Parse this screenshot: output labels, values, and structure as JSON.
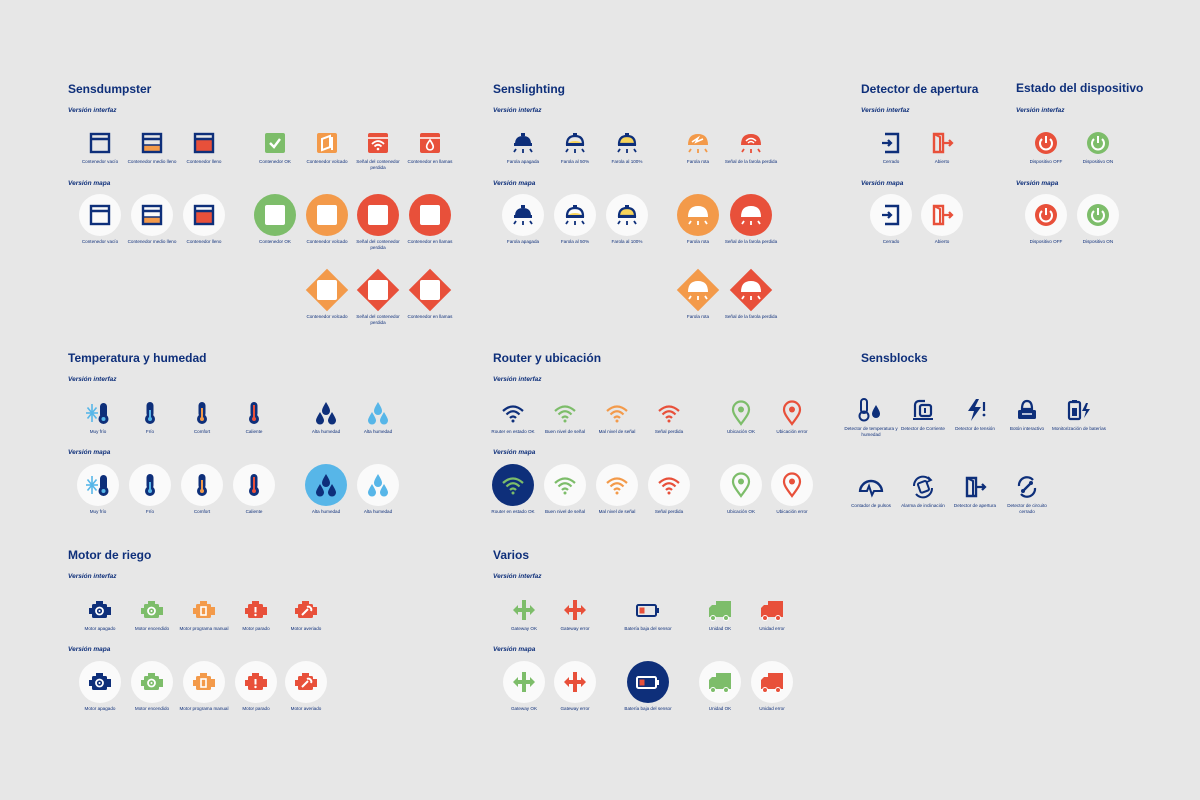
{
  "colors": {
    "navy": "#0e2f7a",
    "green": "#7dbd6a",
    "orange": "#f39a4a",
    "red": "#e8503a",
    "lightblue": "#57b6e8",
    "bg": "#e7e7e7",
    "circle": "#fafafa"
  },
  "sections": [
    {
      "id": "sensdumpster",
      "title": "Sensdumpster",
      "sub_interfaz": "Versión interfaz",
      "sub_mapa": "Versión mapa",
      "interfaz": [
        {
          "icon": "bin-empty-icon",
          "color": "navy",
          "label": "Contenedor vacío"
        },
        {
          "icon": "bin-half-icon",
          "color": "navy",
          "label": "Contenedor medio lleno"
        },
        {
          "icon": "bin-full-icon",
          "color": "navy",
          "label": "Contenedor lleno"
        },
        {
          "icon": "check-box-icon",
          "color": "green",
          "label": "Contenedor OK"
        },
        {
          "icon": "bin-tilted-icon",
          "color": "orange",
          "label": "Contenedor volcado"
        },
        {
          "icon": "wifi-box-icon",
          "color": "red",
          "label": "Señal del contenedor perdida"
        },
        {
          "icon": "fire-box-icon",
          "color": "red",
          "label": "Contenedor en llamas"
        }
      ],
      "mapa": [
        {
          "icon": "bin-empty-icon",
          "color": "navy",
          "label": "Contenedor vacío"
        },
        {
          "icon": "bin-half-icon",
          "color": "navy",
          "label": "Contenedor medio lleno"
        },
        {
          "icon": "bin-full-icon",
          "color": "navy",
          "label": "Contenedor lleno"
        },
        {
          "icon": "check-box-icon",
          "color": "green",
          "label": "Contenedor OK"
        },
        {
          "icon": "bin-tilted-icon",
          "color": "orange",
          "label": "Contenedor volcado"
        },
        {
          "icon": "wifi-box-icon",
          "color": "red",
          "label": "Señal del contenedor perdida"
        },
        {
          "icon": "fire-box-icon",
          "color": "red",
          "label": "Contenedor en llamas"
        }
      ],
      "diamond": [
        {
          "icon": "bin-tilted-icon",
          "color": "orange",
          "label": "Contenedor volcado"
        },
        {
          "icon": "wifi-box-icon",
          "color": "red",
          "label": "Señal del contenedor perdida"
        },
        {
          "icon": "fire-box-icon",
          "color": "red",
          "label": "Contenedor en llamas"
        }
      ]
    },
    {
      "id": "senslighting",
      "title": "Senslighting",
      "sub_interfaz": "Versión interfaz",
      "sub_mapa": "Versión mapa",
      "interfaz": [
        {
          "icon": "lamp-off-icon",
          "color": "navy",
          "label": "Farola apagada"
        },
        {
          "icon": "lamp-50-icon",
          "color": "navy",
          "label": "Farola al 50%"
        },
        {
          "icon": "lamp-100-icon",
          "color": "navy",
          "label": "Farola al 100%"
        },
        {
          "icon": "lamp-broken-icon",
          "color": "orange",
          "label": "Farola rota"
        },
        {
          "icon": "lamp-signal-icon",
          "color": "red",
          "label": "Señal de la farola perdida"
        }
      ],
      "mapa": [
        {
          "icon": "lamp-off-icon",
          "color": "navy",
          "label": "Farola apagada"
        },
        {
          "icon": "lamp-50-icon",
          "color": "navy",
          "label": "Farola al 50%"
        },
        {
          "icon": "lamp-100-icon",
          "color": "navy",
          "label": "Farola al 100%"
        },
        {
          "icon": "lamp-broken-icon",
          "color": "orange",
          "label": "Farola rota"
        },
        {
          "icon": "lamp-signal-icon",
          "color": "red",
          "label": "Señal de la farola perdida"
        }
      ],
      "diamond": [
        {
          "icon": "lamp-broken-icon",
          "color": "orange",
          "label": "Farola rota"
        },
        {
          "icon": "lamp-signal-icon",
          "color": "red",
          "label": "Señal de la farola perdida"
        }
      ]
    },
    {
      "id": "apertura",
      "title": "Detector de apertura",
      "sub_interfaz": "Versión interfaz",
      "sub_mapa": "Versión mapa",
      "interfaz": [
        {
          "icon": "door-closed-icon",
          "color": "navy",
          "label": "Cerrado"
        },
        {
          "icon": "door-open-icon",
          "color": "red",
          "label": "Abierto"
        }
      ],
      "mapa": [
        {
          "icon": "door-closed-icon",
          "color": "navy",
          "label": "Cerrado"
        },
        {
          "icon": "door-open-icon",
          "color": "red",
          "label": "Abierto"
        }
      ]
    },
    {
      "id": "estado",
      "title": "Estado del dispositivo",
      "sub_interfaz": "Versión interfaz",
      "sub_mapa": "Versión mapa",
      "interfaz": [
        {
          "icon": "power-off-icon",
          "color": "red",
          "label": "Dispositivo OFF"
        },
        {
          "icon": "power-on-icon",
          "color": "green",
          "label": "Dispositivo ON"
        }
      ],
      "mapa": [
        {
          "icon": "power-off-icon",
          "color": "red",
          "label": "Dispositivo OFF"
        },
        {
          "icon": "power-on-icon",
          "color": "green",
          "label": "Dispositivo ON"
        }
      ]
    },
    {
      "id": "temperatura",
      "title": "Temperatura y humedad",
      "sub_interfaz": "Versión interfaz",
      "sub_mapa": "Versión mapa",
      "interfaz": [
        {
          "icon": "snow-thermometer-icon",
          "color": "navy",
          "label": "Muy frío"
        },
        {
          "icon": "thermometer-cold-icon",
          "color": "navy",
          "label": "Frío"
        },
        {
          "icon": "thermometer-comfort-icon",
          "color": "navy",
          "label": "Comfort"
        },
        {
          "icon": "thermometer-hot-icon",
          "color": "navy",
          "label": "Caliente"
        },
        {
          "icon": "drops-high-icon",
          "color": "navy",
          "label": "Alta humedad"
        },
        {
          "icon": "drops-low-icon",
          "color": "lightblue",
          "label": "Alta humedad"
        }
      ],
      "mapa": [
        {
          "icon": "snow-thermometer-icon",
          "color": "navy",
          "label": "Muy frío"
        },
        {
          "icon": "thermometer-cold-icon",
          "color": "navy",
          "label": "Frío"
        },
        {
          "icon": "thermometer-comfort-icon",
          "color": "navy",
          "label": "Comfort"
        },
        {
          "icon": "thermometer-hot-icon",
          "color": "navy",
          "label": "Caliente"
        },
        {
          "icon": "drops-high-icon",
          "color": "navy",
          "label": "Alta humedad"
        },
        {
          "icon": "drops-low-icon",
          "color": "lightblue",
          "label": "Alta humedad"
        }
      ]
    },
    {
      "id": "router",
      "title": "Router y ubicación",
      "sub_interfaz": "Versión interfaz",
      "sub_mapa": "Versión mapa",
      "interfaz": [
        {
          "icon": "wifi-ok-icon",
          "color": "navy",
          "label": "Router en estado OK"
        },
        {
          "icon": "wifi-good-icon",
          "color": "green",
          "label": "Buen nivel de señal"
        },
        {
          "icon": "wifi-bad-icon",
          "color": "orange",
          "label": "Mal nivel de señal"
        },
        {
          "icon": "wifi-lost-icon",
          "color": "red",
          "label": "Señal perdida"
        },
        {
          "icon": "pin-ok-icon",
          "color": "green",
          "label": "Ubicación OK"
        },
        {
          "icon": "pin-error-icon",
          "color": "red",
          "label": "Ubicación error"
        }
      ],
      "mapa": [
        {
          "icon": "wifi-ok-icon",
          "color": "navy",
          "label": "Router en estado OK"
        },
        {
          "icon": "wifi-good-icon",
          "color": "green",
          "label": "Buen nivel de señal"
        },
        {
          "icon": "wifi-bad-icon",
          "color": "orange",
          "label": "Mal nivel de señal"
        },
        {
          "icon": "wifi-lost-icon",
          "color": "red",
          "label": "Señal perdida"
        },
        {
          "icon": "pin-ok-icon",
          "color": "green",
          "label": "Ubicación OK"
        },
        {
          "icon": "pin-error-icon",
          "color": "red",
          "label": "Ubicación error"
        }
      ]
    },
    {
      "id": "sensblocks",
      "title": "Sensblocks",
      "row1": [
        {
          "icon": "temp-humidity-sensor-icon",
          "color": "navy",
          "label": "Detector de temperatura y humedad"
        },
        {
          "icon": "current-sensor-icon",
          "color": "navy",
          "label": "Detector de Corriente"
        },
        {
          "icon": "voltage-sensor-icon",
          "color": "navy",
          "label": "Detector de tensión"
        },
        {
          "icon": "interactive-button-icon",
          "color": "navy",
          "label": "Botón interactivo"
        },
        {
          "icon": "battery-monitor-icon",
          "color": "navy",
          "label": "Monitorización de baterías"
        }
      ],
      "row2": [
        {
          "icon": "pulse-counter-icon",
          "color": "navy",
          "label": "Contador de pulsos"
        },
        {
          "icon": "tilt-alarm-icon",
          "color": "navy",
          "label": "Alarma de inclinación"
        },
        {
          "icon": "opening-sensor-icon",
          "color": "navy",
          "label": "Detector de apertura"
        },
        {
          "icon": "closed-circuit-icon",
          "color": "navy",
          "label": "Detector de circuito cerrado"
        }
      ]
    },
    {
      "id": "motor",
      "title": "Motor de riego",
      "sub_interfaz": "Versión interfaz",
      "sub_mapa": "Versión mapa",
      "interfaz": [
        {
          "icon": "motor-off-icon",
          "color": "navy",
          "label": "Motor apagado"
        },
        {
          "icon": "motor-on-icon",
          "color": "green",
          "label": "Motor encendido"
        },
        {
          "icon": "motor-manual-icon",
          "color": "orange",
          "label": "Motor programa manual"
        },
        {
          "icon": "motor-stopped-icon",
          "color": "red",
          "label": "Motor parado"
        },
        {
          "icon": "motor-broken-icon",
          "color": "red",
          "label": "Motor averiado"
        }
      ],
      "mapa": [
        {
          "icon": "motor-off-icon",
          "color": "navy",
          "label": "Motor apagado"
        },
        {
          "icon": "motor-on-icon",
          "color": "green",
          "label": "Motor encendido"
        },
        {
          "icon": "motor-manual-icon",
          "color": "orange",
          "label": "Motor programa manual"
        },
        {
          "icon": "motor-stopped-icon",
          "color": "red",
          "label": "Motor parado"
        },
        {
          "icon": "motor-broken-icon",
          "color": "red",
          "label": "Motor averiado"
        }
      ]
    },
    {
      "id": "varios",
      "title": "Varios",
      "sub_interfaz": "Versión interfaz",
      "sub_mapa": "Versión mapa",
      "interfaz": [
        {
          "icon": "gateway-ok-icon",
          "color": "green",
          "label": "Gateway OK"
        },
        {
          "icon": "gateway-error-icon",
          "color": "red",
          "label": "Gateway error"
        },
        {
          "icon": "battery-low-icon",
          "color": "navy",
          "label": "Batería baja del sensor"
        },
        {
          "icon": "truck-ok-icon",
          "color": "green",
          "label": "Unidad OK"
        },
        {
          "icon": "truck-error-icon",
          "color": "red",
          "label": "Unidad error"
        }
      ],
      "mapa": [
        {
          "icon": "gateway-ok-icon",
          "color": "green",
          "label": "Gateway OK"
        },
        {
          "icon": "gateway-error-icon",
          "color": "red",
          "label": "Gateway error"
        },
        {
          "icon": "battery-low-icon",
          "color": "navy",
          "label": "Batería baja del sensor"
        },
        {
          "icon": "truck-ok-icon",
          "color": "green",
          "label": "Unidad OK"
        },
        {
          "icon": "truck-error-icon",
          "color": "red",
          "label": "Unidad error"
        }
      ]
    }
  ]
}
